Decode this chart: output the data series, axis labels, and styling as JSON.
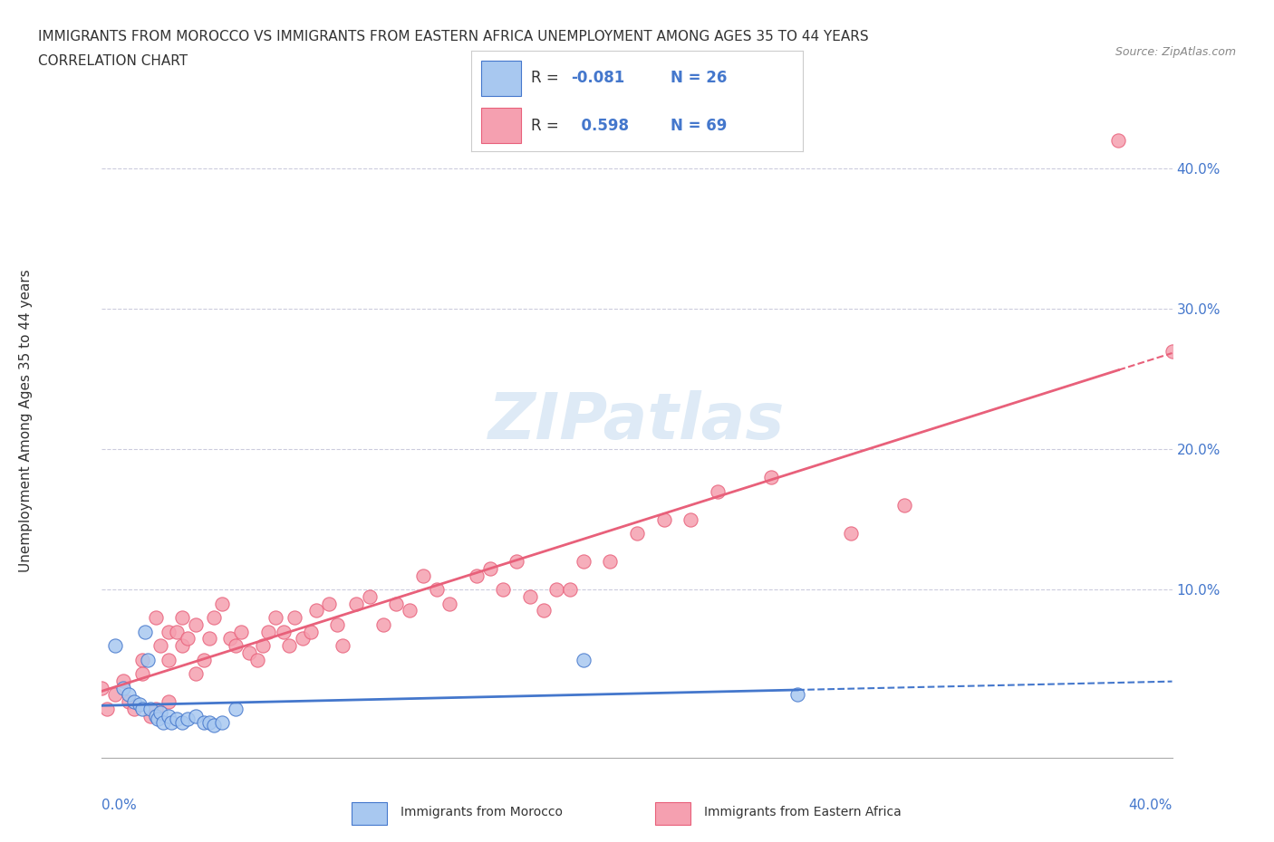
{
  "title_line1": "IMMIGRANTS FROM MOROCCO VS IMMIGRANTS FROM EASTERN AFRICA UNEMPLOYMENT AMONG AGES 35 TO 44 YEARS",
  "title_line2": "CORRELATION CHART",
  "source_text": "Source: ZipAtlas.com",
  "ylabel": "Unemployment Among Ages 35 to 44 years",
  "xlim": [
    0.0,
    0.4
  ],
  "ylim": [
    -0.02,
    0.46
  ],
  "morocco_R": -0.081,
  "morocco_N": 26,
  "eastern_africa_R": 0.598,
  "eastern_africa_N": 69,
  "morocco_color": "#a8c8f0",
  "eastern_africa_color": "#f5a0b0",
  "morocco_line_color": "#4477cc",
  "eastern_africa_line_color": "#e8607a",
  "watermark_text": "ZIPatlas",
  "watermark_color": "#c8ddf0",
  "legend_label_morocco": "Immigrants from Morocco",
  "legend_label_eastern": "Immigrants from Eastern Africa",
  "morocco_x": [
    0.005,
    0.008,
    0.01,
    0.012,
    0.014,
    0.015,
    0.016,
    0.017,
    0.018,
    0.02,
    0.021,
    0.022,
    0.023,
    0.025,
    0.026,
    0.028,
    0.03,
    0.032,
    0.035,
    0.038,
    0.04,
    0.042,
    0.045,
    0.05,
    0.18,
    0.26
  ],
  "morocco_y": [
    0.06,
    0.03,
    0.025,
    0.02,
    0.018,
    0.015,
    0.07,
    0.05,
    0.015,
    0.01,
    0.008,
    0.012,
    0.005,
    0.01,
    0.005,
    0.008,
    0.005,
    0.008,
    0.01,
    0.005,
    0.005,
    0.003,
    0.005,
    0.015,
    0.05,
    0.025
  ],
  "eastern_africa_x": [
    0.0,
    0.002,
    0.005,
    0.008,
    0.01,
    0.012,
    0.015,
    0.015,
    0.018,
    0.02,
    0.02,
    0.022,
    0.025,
    0.025,
    0.025,
    0.028,
    0.03,
    0.03,
    0.032,
    0.035,
    0.035,
    0.038,
    0.04,
    0.042,
    0.045,
    0.048,
    0.05,
    0.052,
    0.055,
    0.058,
    0.06,
    0.062,
    0.065,
    0.068,
    0.07,
    0.072,
    0.075,
    0.078,
    0.08,
    0.085,
    0.088,
    0.09,
    0.095,
    0.1,
    0.105,
    0.11,
    0.115,
    0.12,
    0.125,
    0.13,
    0.14,
    0.145,
    0.15,
    0.155,
    0.16,
    0.165,
    0.17,
    0.175,
    0.18,
    0.19,
    0.2,
    0.21,
    0.22,
    0.23,
    0.25,
    0.28,
    0.3,
    0.38,
    0.4
  ],
  "eastern_africa_y": [
    0.03,
    0.015,
    0.025,
    0.035,
    0.02,
    0.015,
    0.05,
    0.04,
    0.01,
    0.015,
    0.08,
    0.06,
    0.07,
    0.05,
    0.02,
    0.07,
    0.08,
    0.06,
    0.065,
    0.04,
    0.075,
    0.05,
    0.065,
    0.08,
    0.09,
    0.065,
    0.06,
    0.07,
    0.055,
    0.05,
    0.06,
    0.07,
    0.08,
    0.07,
    0.06,
    0.08,
    0.065,
    0.07,
    0.085,
    0.09,
    0.075,
    0.06,
    0.09,
    0.095,
    0.075,
    0.09,
    0.085,
    0.11,
    0.1,
    0.09,
    0.11,
    0.115,
    0.1,
    0.12,
    0.095,
    0.085,
    0.1,
    0.1,
    0.12,
    0.12,
    0.14,
    0.15,
    0.15,
    0.17,
    0.18,
    0.14,
    0.16,
    0.42,
    0.27
  ]
}
